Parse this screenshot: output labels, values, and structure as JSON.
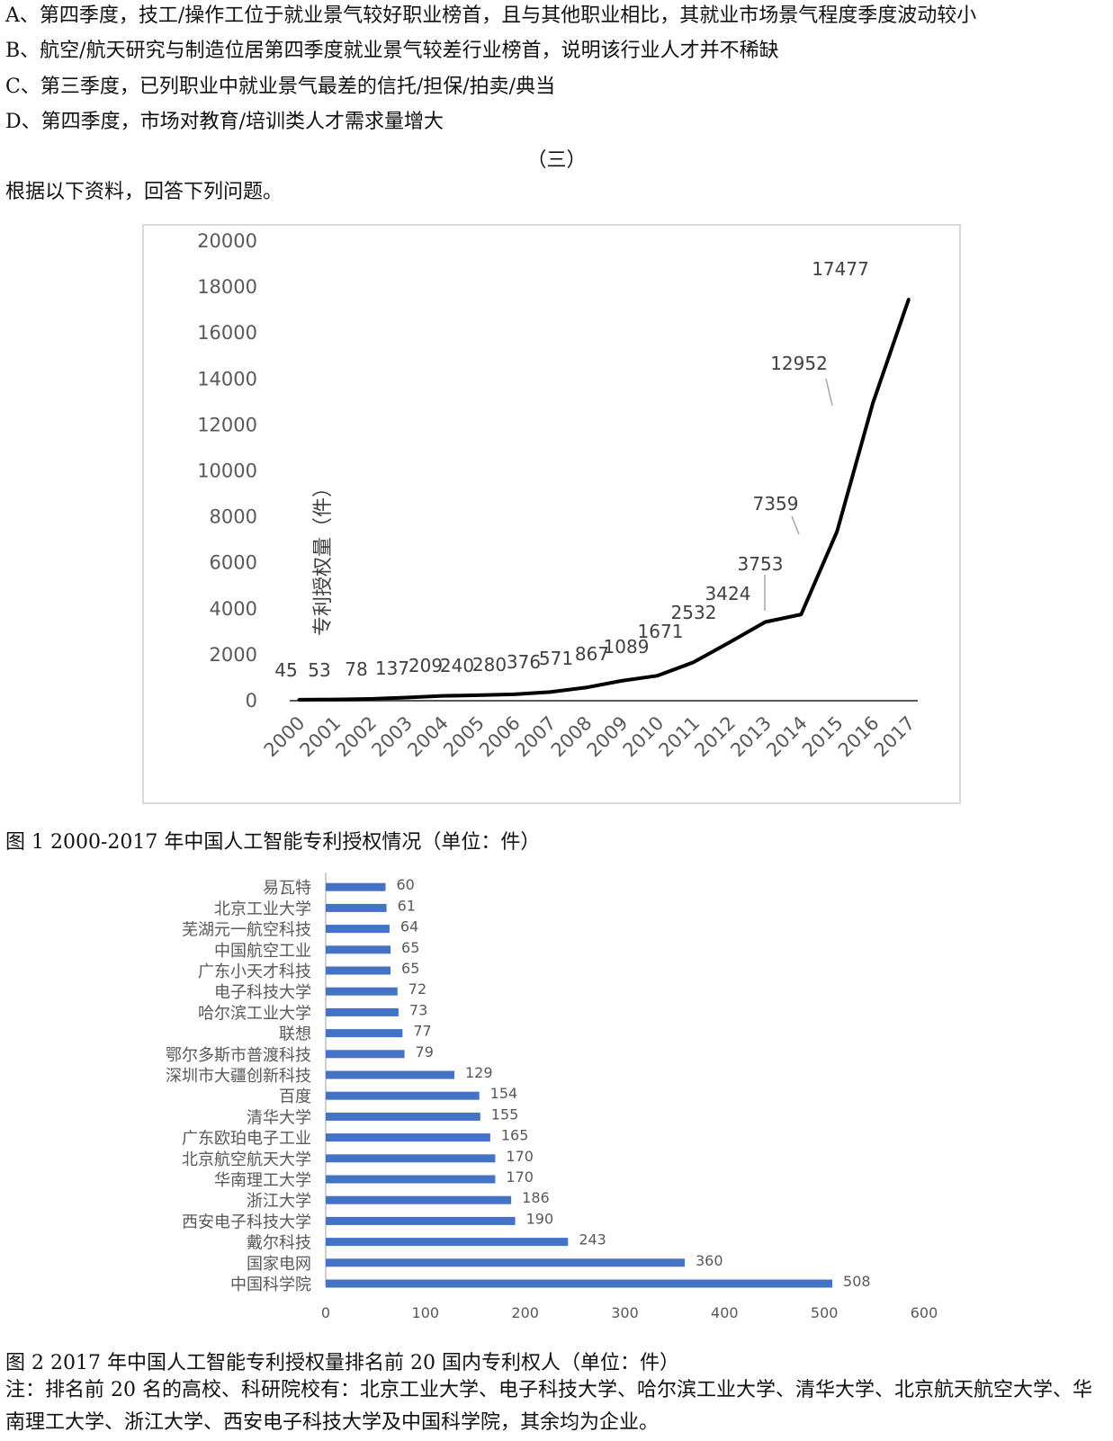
{
  "question_options": {
    "a": "A、第四季度，技工/操作工位于就业景气较好职业榜首，且与其他职业相比，其就业市场景气程度季度波动较小",
    "b": "B、航空/航天研究与制造位居第四季度就业景气较差行业榜首，说明该行业人才并不稀缺",
    "c": "C、第三季度，已列职业中就业景气最差的信托/担保/拍卖/典当",
    "d": "D、第四季度，市场对教育/培训类人才需求量增大"
  },
  "section_marker": "（三）",
  "instruction": "根据以下资料，回答下列问题。",
  "figure1_caption": "图 1   2000-2017 年中国人工智能专利授权情况（单位：件）",
  "figure2_caption": "图 2   2017 年中国人工智能专利授权量排名前 20 国内专利权人（单位：件）",
  "note": "注：排名前 20 名的高校、科研院校有：北京工业大学、电子科技大学、哈尔滨工业大学、清华大学、北京航天航空大学、华南理工大学、浙江大学、西安电子科技大学及中国科学院，其余均为企业。",
  "chart_data": [
    {
      "type": "line",
      "title": "",
      "ylabel": "专利授权量（件）",
      "xlabel": "",
      "ylim": [
        0,
        20000
      ],
      "yticks": [
        0,
        2000,
        4000,
        6000,
        8000,
        10000,
        12000,
        14000,
        16000,
        18000,
        20000
      ],
      "x": [
        "2000",
        "2001",
        "2002",
        "2003",
        "2004",
        "2005",
        "2006",
        "2007",
        "2008",
        "2009",
        "2010",
        "2011",
        "2012",
        "2013",
        "2014",
        "2015",
        "2016",
        "2017"
      ],
      "series": [
        {
          "values": [
            45,
            53,
            78,
            137,
            209,
            240,
            280,
            376,
            571,
            867,
            1089,
            1671,
            2532,
            3424,
            3753,
            7359,
            12952,
            17477
          ],
          "color": "#000000"
        }
      ],
      "data_labels": true,
      "grid": false
    },
    {
      "type": "bar",
      "orientation": "horizontal",
      "title": "",
      "xlim": [
        0,
        600
      ],
      "xticks": [
        0,
        100,
        200,
        300,
        400,
        500,
        600
      ],
      "categories": [
        "易瓦特",
        "北京工业大学",
        "芜湖元一航空科技",
        "中国航空工业",
        "广东小天才科技",
        "电子科技大学",
        "哈尔滨工业大学",
        "联想",
        "鄂尔多斯市普渡科技",
        "深圳市大疆创新科技",
        "百度",
        "清华大学",
        "广东欧珀电子工业",
        "北京航空航天大学",
        "华南理工大学",
        "浙江大学",
        "西安电子科技大学",
        "戴尔科技",
        "国家电网",
        "中国科学院"
      ],
      "values": [
        60,
        61,
        64,
        65,
        65,
        72,
        73,
        77,
        79,
        129,
        154,
        155,
        165,
        170,
        170,
        186,
        190,
        243,
        360,
        508
      ],
      "color": "#4472c4",
      "data_labels": true,
      "grid": false
    }
  ]
}
